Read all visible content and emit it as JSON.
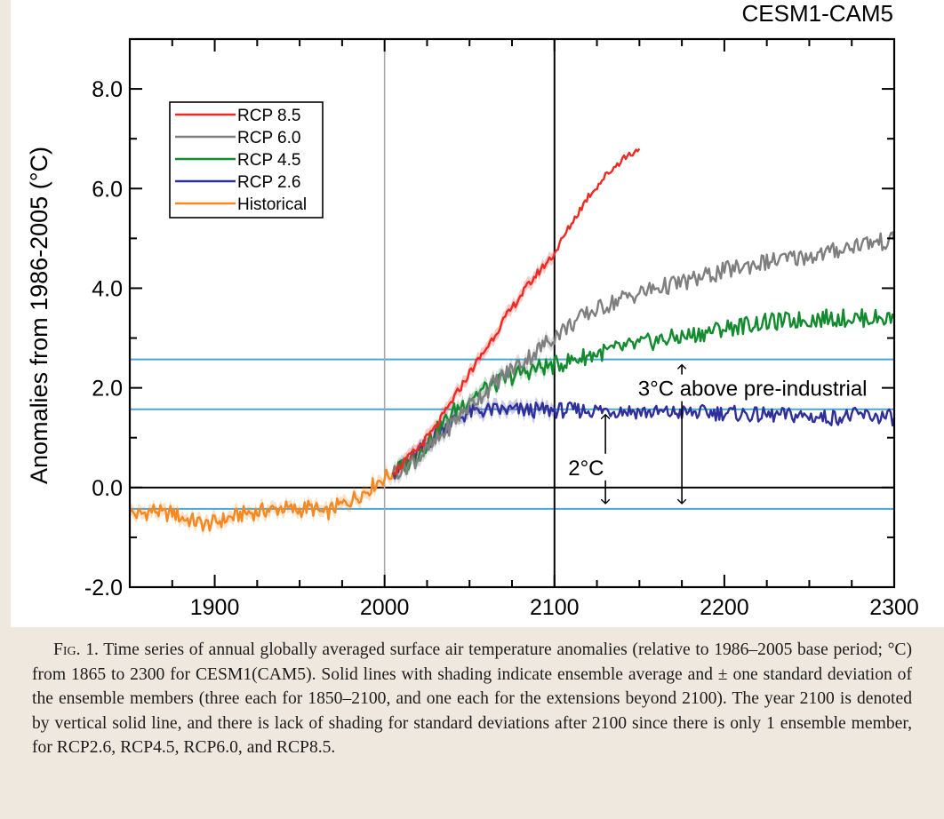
{
  "figure": {
    "caption_label": "Fig. 1.",
    "caption_text": "Time series of annual globally averaged surface air temperature anomalies (relative to 1986–2005 base period; °C) from 1865 to 2300 for CESM1(CAM5). Solid lines with shading indicate ensemble average and ± one standard deviation of the ensemble members (three each for 1850–2100, and one each for the extensions beyond 2100). The year 2100 is denoted by vertical solid line, and there is lack of shading for standard deviations after 2100 since there is only 1 ensemble member, for RCP2.6, RCP4.5, RCP6.0, and RCP8.5."
  },
  "chart_data": {
    "type": "line",
    "title": "CESM1-CAM5",
    "xlabel": "",
    "ylabel": "Anomalies from 1986-2005 (°C)",
    "xlim": [
      1850,
      2300
    ],
    "ylim": [
      -2.0,
      9.0
    ],
    "x_ticks": [
      1900,
      2000,
      2100,
      2200,
      2300
    ],
    "y_ticks": [
      -2.0,
      0.0,
      2.0,
      4.0,
      6.0,
      8.0
    ],
    "y_tick_labels": [
      "-2.0",
      "0.0",
      "2.0",
      "4.0",
      "6.0",
      "8.0"
    ],
    "grid": false,
    "legend_position": "top-left",
    "colors": {
      "rcp85": "#ee2a22",
      "rcp60": "#7f7f7f",
      "rcp45": "#128a2e",
      "rcp26": "#2e2f9a",
      "historical": "#f7871f",
      "reference_lines": "#4aa6d2"
    },
    "series": [
      {
        "name": "RCP 8.5",
        "key": "rcp85",
        "x": [
          2005,
          2010,
          2020,
          2030,
          2040,
          2050,
          2060,
          2070,
          2080,
          2090,
          2100,
          2110,
          2120,
          2130,
          2140,
          2150
        ],
        "y": [
          0.3,
          0.45,
          0.8,
          1.2,
          1.75,
          2.3,
          2.8,
          3.35,
          3.85,
          4.3,
          4.7,
          5.3,
          5.85,
          6.25,
          6.6,
          6.8
        ]
      },
      {
        "name": "RCP 6.0",
        "key": "rcp60",
        "x": [
          2005,
          2010,
          2020,
          2030,
          2040,
          2050,
          2060,
          2070,
          2080,
          2090,
          2100,
          2120,
          2140,
          2160,
          2180,
          2200,
          2220,
          2240,
          2260,
          2280,
          2300
        ],
        "y": [
          0.3,
          0.38,
          0.6,
          0.9,
          1.3,
          1.65,
          1.95,
          2.25,
          2.5,
          2.75,
          3.05,
          3.5,
          3.8,
          4.0,
          4.15,
          4.35,
          4.5,
          4.6,
          4.7,
          4.9,
          4.95
        ]
      },
      {
        "name": "RCP 4.5",
        "key": "rcp45",
        "x": [
          2005,
          2010,
          2020,
          2030,
          2040,
          2050,
          2060,
          2070,
          2080,
          2090,
          2100,
          2120,
          2140,
          2160,
          2180,
          2200,
          2220,
          2240,
          2260,
          2280,
          2300
        ],
        "y": [
          0.3,
          0.4,
          0.7,
          1.1,
          1.5,
          1.8,
          2.0,
          2.15,
          2.3,
          2.4,
          2.45,
          2.65,
          2.8,
          2.95,
          3.05,
          3.2,
          3.3,
          3.35,
          3.4,
          3.4,
          3.4
        ]
      },
      {
        "name": "RCP 2.6",
        "key": "rcp26",
        "x": [
          2005,
          2010,
          2020,
          2030,
          2040,
          2050,
          2060,
          2070,
          2080,
          2090,
          2100,
          2120,
          2140,
          2160,
          2180,
          2200,
          2220,
          2240,
          2260,
          2280,
          2300
        ],
        "y": [
          0.3,
          0.4,
          0.7,
          1.05,
          1.35,
          1.5,
          1.55,
          1.55,
          1.55,
          1.55,
          1.55,
          1.55,
          1.55,
          1.5,
          1.5,
          1.5,
          1.45,
          1.45,
          1.4,
          1.45,
          1.4
        ]
      },
      {
        "name": "Historical",
        "key": "historical",
        "x": [
          1850,
          1855,
          1860,
          1865,
          1870,
          1875,
          1880,
          1885,
          1890,
          1895,
          1900,
          1905,
          1910,
          1915,
          1920,
          1925,
          1930,
          1935,
          1940,
          1945,
          1950,
          1955,
          1960,
          1965,
          1970,
          1975,
          1980,
          1985,
          1990,
          1995,
          2000,
          2005
        ],
        "y": [
          -0.5,
          -0.55,
          -0.5,
          -0.45,
          -0.55,
          -0.5,
          -0.6,
          -0.65,
          -0.7,
          -0.75,
          -0.7,
          -0.65,
          -0.6,
          -0.55,
          -0.5,
          -0.5,
          -0.45,
          -0.45,
          -0.4,
          -0.45,
          -0.45,
          -0.4,
          -0.45,
          -0.55,
          -0.4,
          -0.35,
          -0.25,
          -0.15,
          -0.05,
          0.1,
          0.2,
          0.3
        ]
      }
    ],
    "reference_lines": {
      "horizontal": [
        2.57,
        1.57,
        0.0,
        -0.43
      ],
      "vertical": [
        2000,
        2100
      ]
    },
    "annotations": [
      {
        "text": "3°C above pre-industrial",
        "x": 2100,
        "y": 2.0
      },
      {
        "text": "2°C",
        "x": 2106,
        "y": 0.25
      }
    ],
    "arrows": [
      {
        "x": 2130,
        "y_from": 1.57,
        "y_to": -0.43
      },
      {
        "x": 2175,
        "y_from": 2.57,
        "y_to": -0.43
      }
    ]
  }
}
